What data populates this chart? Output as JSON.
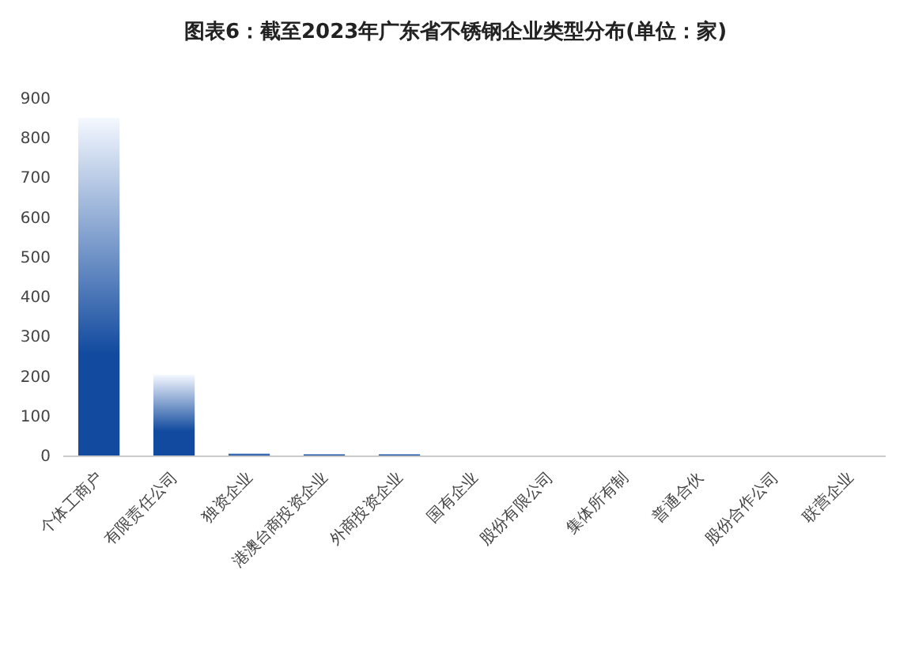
{
  "chart_data": {
    "type": "bar",
    "title": "图表6：截至2023年广东省不锈钢企业类型分布(单位：家)",
    "categories": [
      "个体工商户",
      "有限责任公司",
      "独资企业",
      "港澳台商投资企业",
      "外商投资企业",
      "国有企业",
      "股份有限公司",
      "集体所有制",
      "普通合伙",
      "股份合作公司",
      "联营企业"
    ],
    "values": [
      850,
      203,
      6,
      4,
      4,
      0,
      0,
      0,
      0,
      0,
      0
    ],
    "color": "#114a9e",
    "ylim": [
      0,
      900
    ],
    "yticks": [
      0,
      100,
      200,
      300,
      400,
      500,
      600,
      700,
      800,
      900
    ],
    "grid": false
  }
}
